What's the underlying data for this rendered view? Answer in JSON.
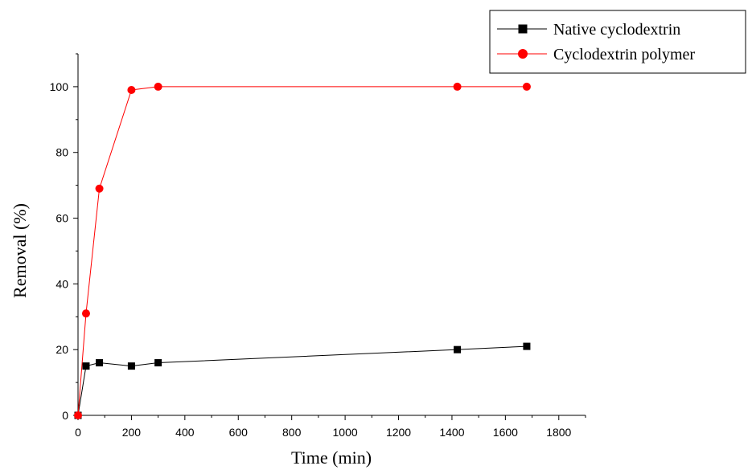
{
  "chart_data": {
    "type": "line",
    "title": "",
    "xlabel": "Time (min)",
    "ylabel": "Removal (%)",
    "xlim": [
      0,
      1900
    ],
    "ylim": [
      0,
      110
    ],
    "xticks": [
      0,
      200,
      400,
      600,
      800,
      1000,
      1200,
      1400,
      1600,
      1800
    ],
    "yticks": [
      0,
      20,
      40,
      60,
      80,
      100
    ],
    "grid": false,
    "legend_position": "top-right",
    "series": [
      {
        "name": "Native cyclodextrin",
        "color": "#000000",
        "marker": "square",
        "x": [
          0,
          30,
          80,
          200,
          300,
          1420,
          1680
        ],
        "y": [
          0,
          15,
          16,
          15,
          16,
          20,
          21
        ]
      },
      {
        "name": "Cyclodextrin polymer",
        "color": "#ff0000",
        "marker": "circle",
        "x": [
          0,
          30,
          80,
          200,
          300,
          1420,
          1680
        ],
        "y": [
          0,
          31,
          69,
          99,
          100,
          100,
          100
        ]
      }
    ]
  }
}
